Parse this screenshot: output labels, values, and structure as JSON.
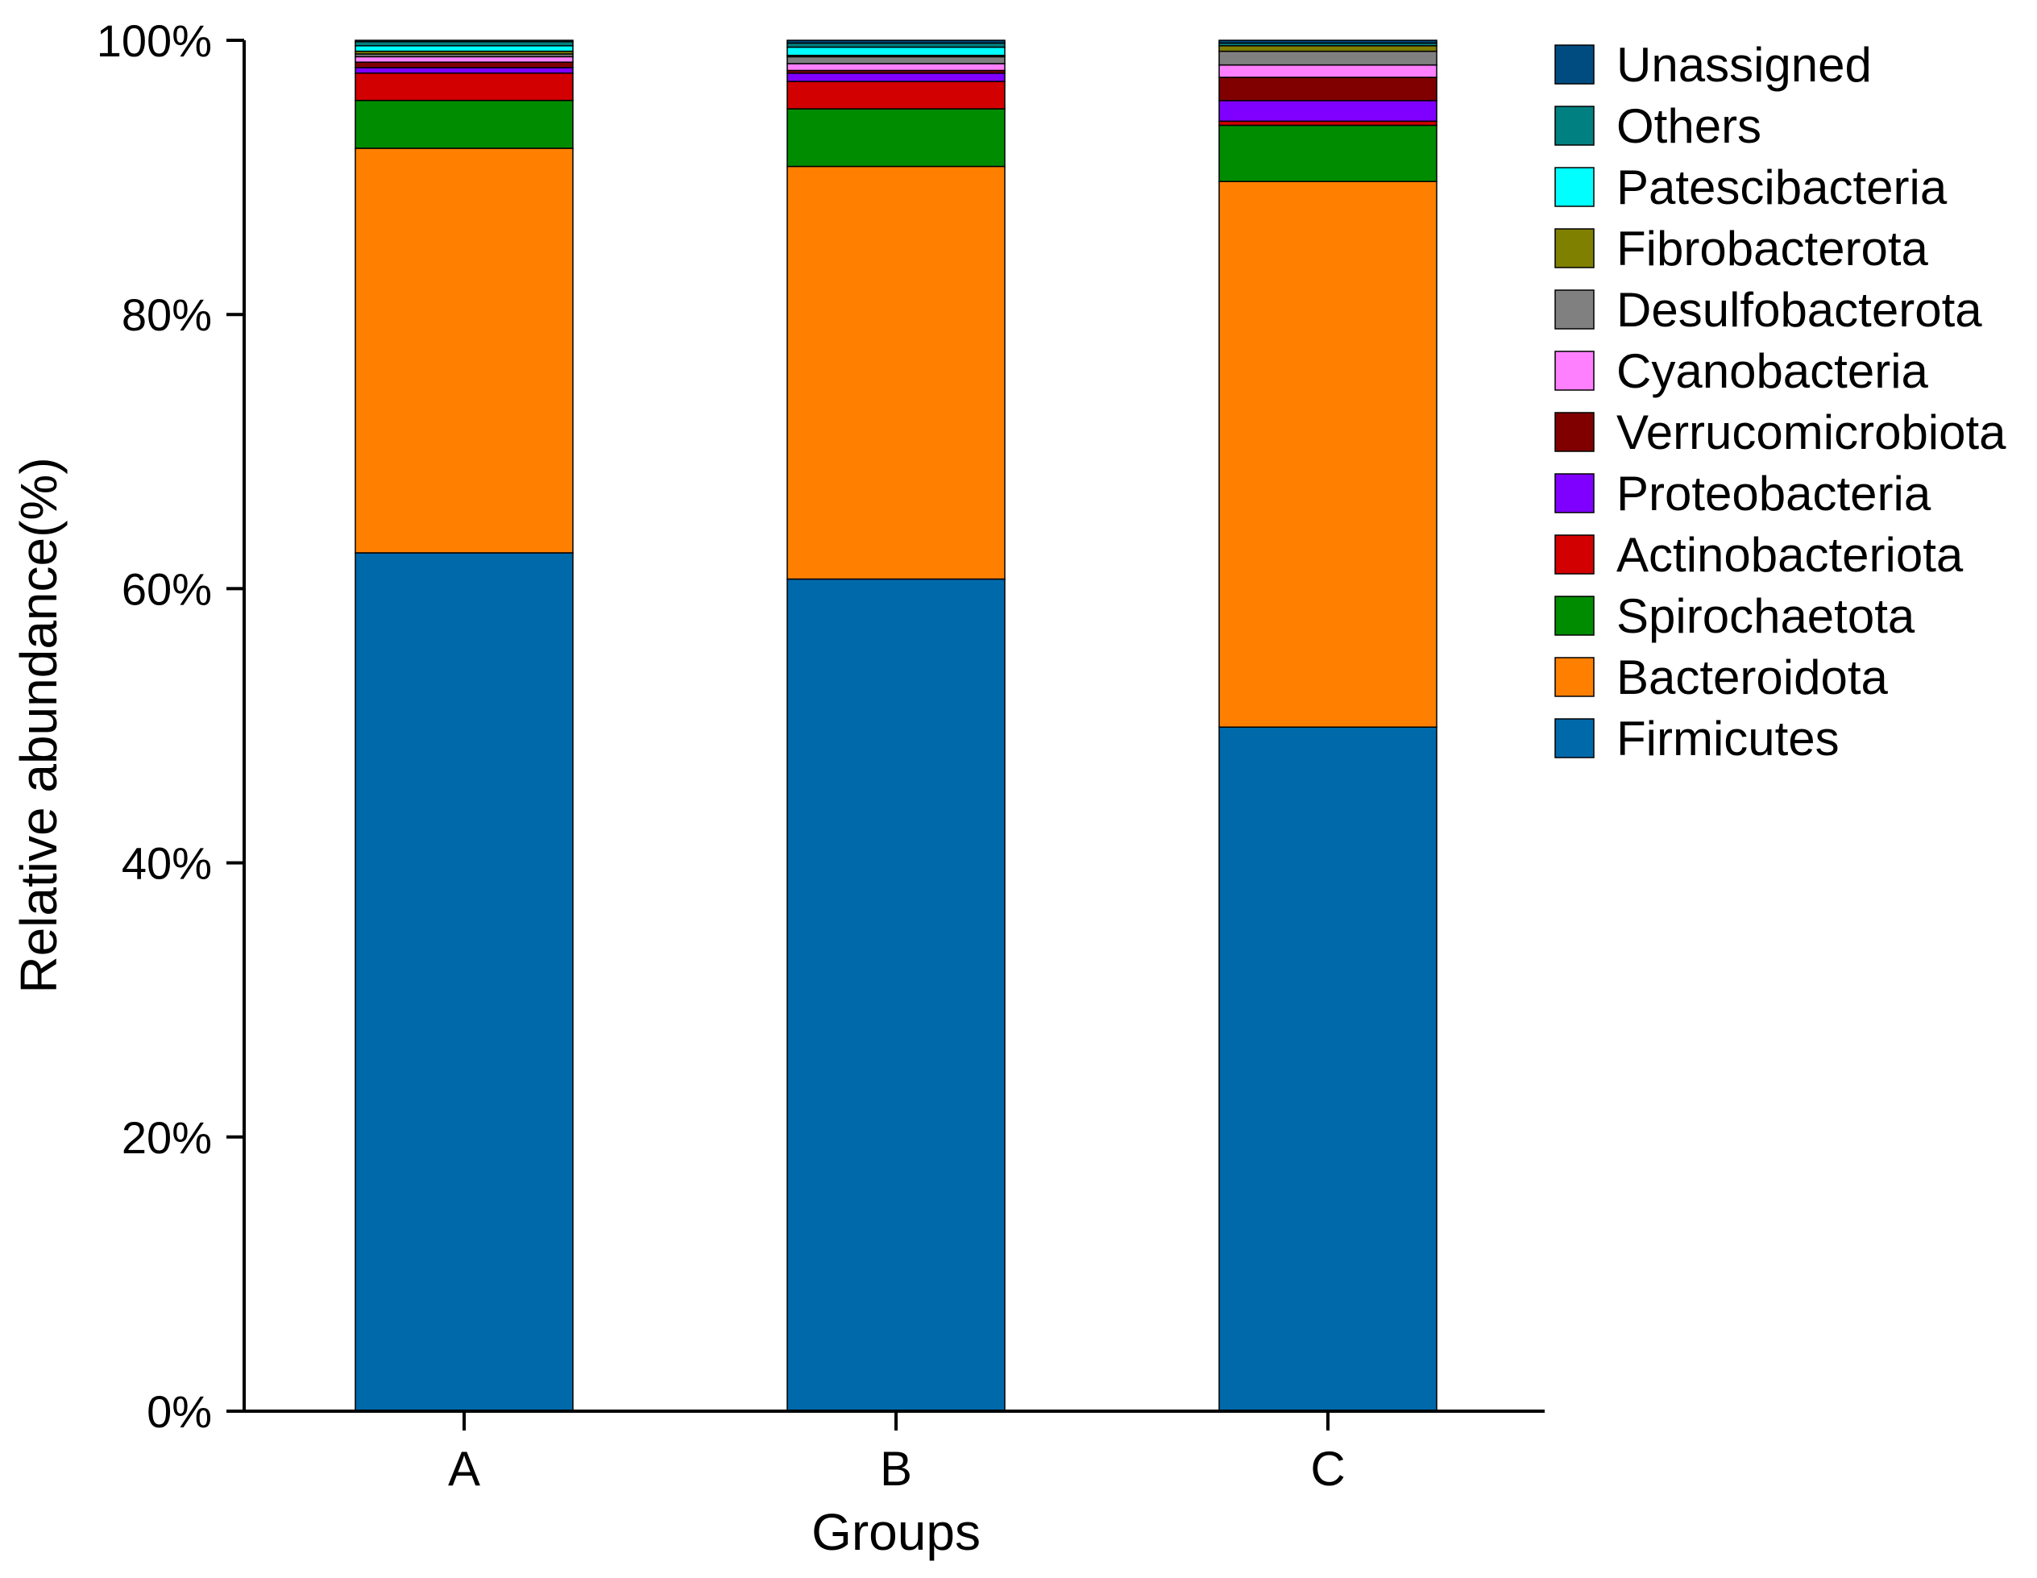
{
  "chart_data": {
    "type": "bar",
    "stacked": true,
    "percent": true,
    "title": "",
    "xlabel": "Groups",
    "ylabel": "Relative abundance(%)",
    "ylim": [
      0,
      100
    ],
    "yticks": [
      "0%",
      "20%",
      "40%",
      "60%",
      "80%",
      "100%"
    ],
    "categories": [
      "A",
      "B",
      "C"
    ],
    "legend_position": "right",
    "series": [
      {
        "name": "Firmicutes",
        "color": "#0069AA",
        "values": [
          62.8,
          60.7,
          49.9
        ]
      },
      {
        "name": "Bacteroidota",
        "color": "#FF8000",
        "values": [
          29.6,
          30.1,
          39.8
        ]
      },
      {
        "name": "Spirochaetota",
        "color": "#008C00",
        "values": [
          3.5,
          4.2,
          4.1
        ]
      },
      {
        "name": "Actinobacteriota",
        "color": "#D20000",
        "values": [
          2.0,
          2.0,
          0.3
        ]
      },
      {
        "name": "Proteobacteria",
        "color": "#8000FF",
        "values": [
          0.4,
          0.6,
          1.5
        ]
      },
      {
        "name": "Verrucomicrobiota",
        "color": "#800000",
        "values": [
          0.4,
          0.2,
          1.7
        ]
      },
      {
        "name": "Cyanobacteria",
        "color": "#FF80FF",
        "values": [
          0.4,
          0.5,
          0.9
        ]
      },
      {
        "name": "Desulfobacterota",
        "color": "#808080",
        "values": [
          0.2,
          0.5,
          1.0
        ]
      },
      {
        "name": "Fibrobacterota",
        "color": "#808000",
        "values": [
          0.2,
          0.1,
          0.4
        ]
      },
      {
        "name": "Patescibacteria",
        "color": "#00FFFF",
        "values": [
          0.4,
          0.6,
          0.0
        ]
      },
      {
        "name": "Others",
        "color": "#008080",
        "values": [
          0.3,
          0.3,
          0.2
        ]
      },
      {
        "name": "Unassigned",
        "color": "#004C80",
        "values": [
          0.1,
          0.2,
          0.2
        ]
      }
    ]
  }
}
